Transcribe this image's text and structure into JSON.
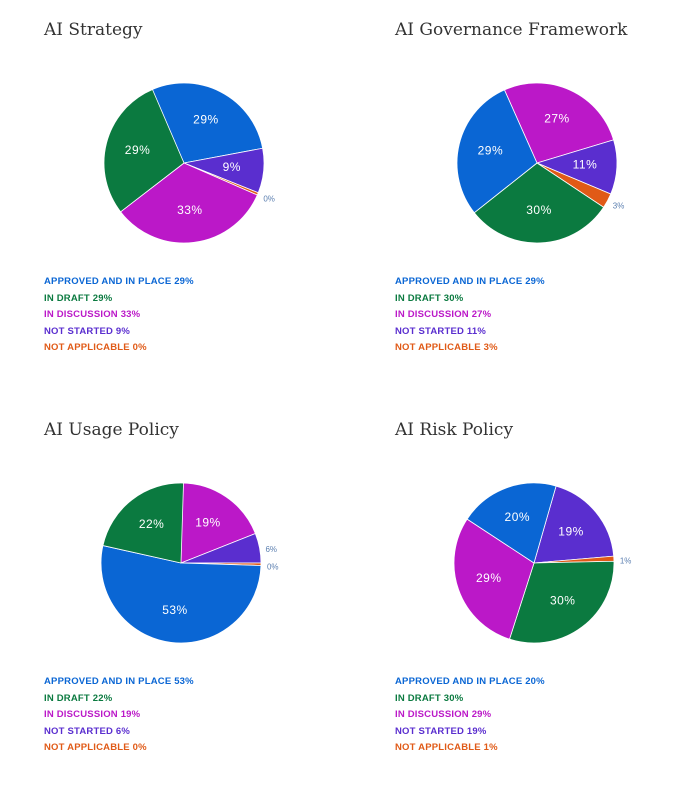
{
  "colors": {
    "approved": "#0a66d4",
    "draft": "#0b7a40",
    "discussion": "#bb18c8",
    "not_started": "#5a2ecf",
    "not_applicable": "#e05a17"
  },
  "chart_data": [
    {
      "type": "pie",
      "title": "AI Strategy",
      "slices": [
        {
          "key": "approved",
          "label": "APPROVED AND IN PLACE",
          "value": 29
        },
        {
          "key": "not_started",
          "label": "NOT STARTED",
          "value": 9
        },
        {
          "key": "not_applicable",
          "label": "NOT APPLICABLE",
          "value": 0
        },
        {
          "key": "discussion",
          "label": "IN DISCUSSION",
          "value": 33
        },
        {
          "key": "draft",
          "label": "IN DRAFT",
          "value": 29
        }
      ],
      "legend": [
        "APPROVED AND IN PLACE 29%",
        "IN DRAFT 29%",
        "IN DISCUSSION 33%",
        "NOT STARTED 9%",
        "NOT APPLICABLE 0%"
      ],
      "legend_keys": [
        "approved",
        "draft",
        "discussion",
        "not_started",
        "not_applicable"
      ]
    },
    {
      "type": "pie",
      "title": "AI Governance Framework",
      "slices": [
        {
          "key": "discussion",
          "label": "IN DISCUSSION",
          "value": 27
        },
        {
          "key": "not_started",
          "label": "NOT STARTED",
          "value": 11
        },
        {
          "key": "not_applicable",
          "label": "NOT APPLICABLE",
          "value": 3
        },
        {
          "key": "draft",
          "label": "IN DRAFT",
          "value": 30
        },
        {
          "key": "approved",
          "label": "APPROVED AND IN PLACE",
          "value": 29
        }
      ],
      "legend": [
        "APPROVED AND IN PLACE 29%",
        "IN DRAFT 30%",
        "IN DISCUSSION 27%",
        "NOT STARTED 11%",
        "NOT APPLICABLE 3%"
      ],
      "legend_keys": [
        "approved",
        "draft",
        "discussion",
        "not_started",
        "not_applicable"
      ]
    },
    {
      "type": "pie",
      "title": "AI Usage Policy",
      "slices": [
        {
          "key": "discussion",
          "label": "IN DISCUSSION",
          "value": 19
        },
        {
          "key": "not_started",
          "label": "NOT STARTED",
          "value": 6
        },
        {
          "key": "not_applicable",
          "label": "NOT APPLICABLE",
          "value": 0
        },
        {
          "key": "approved",
          "label": "APPROVED AND IN PLACE",
          "value": 53
        },
        {
          "key": "draft",
          "label": "IN DRAFT",
          "value": 22
        }
      ],
      "legend": [
        "APPROVED AND IN PLACE 53%",
        "IN DRAFT 22%",
        "IN DISCUSSION 19%",
        "NOT STARTED 6%",
        "NOT APPLICABLE 0%"
      ],
      "legend_keys": [
        "approved",
        "draft",
        "discussion",
        "not_started",
        "not_applicable"
      ]
    },
    {
      "type": "pie",
      "title": "AI Risk Policy",
      "slices": [
        {
          "key": "not_started",
          "label": "NOT STARTED",
          "value": 19
        },
        {
          "key": "not_applicable",
          "label": "NOT APPLICABLE",
          "value": 1
        },
        {
          "key": "draft",
          "label": "IN DRAFT",
          "value": 30
        },
        {
          "key": "discussion",
          "label": "IN DISCUSSION",
          "value": 29
        },
        {
          "key": "approved",
          "label": "APPROVED AND IN PLACE",
          "value": 20
        }
      ],
      "legend": [
        "APPROVED AND IN PLACE 20%",
        "IN DRAFT 30%",
        "IN DISCUSSION 29%",
        "NOT STARTED 19%",
        "NOT APPLICABLE 1%"
      ],
      "legend_keys": [
        "approved",
        "draft",
        "discussion",
        "not_started",
        "not_applicable"
      ]
    }
  ]
}
